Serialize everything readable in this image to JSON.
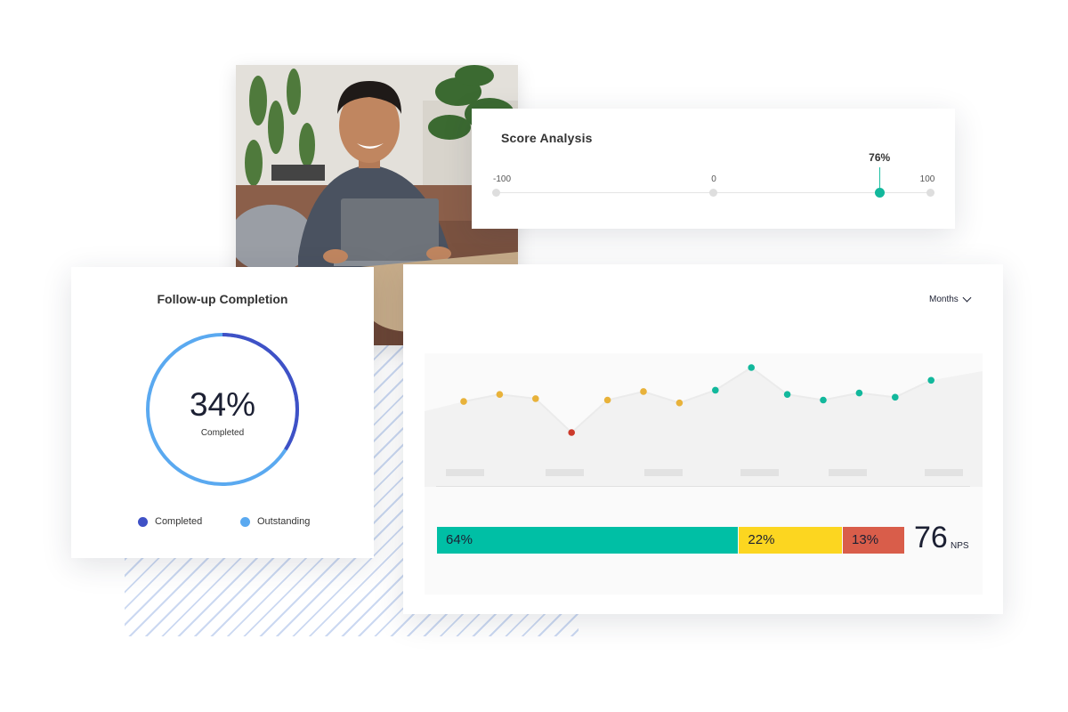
{
  "score_analysis": {
    "title": "Score Analysis",
    "scale": [
      "-100",
      "0",
      "100"
    ],
    "marker_label": "76%",
    "marker_value": 76,
    "colors": {
      "marker": "#12b89c",
      "track": "#e4e4e4"
    }
  },
  "followup": {
    "title": "Follow-up Completion",
    "value_label": "34%",
    "sub_label": "Completed",
    "completed_fraction": 0.34,
    "legend": [
      {
        "label": "Completed",
        "color": "#3f51c6"
      },
      {
        "label": "Outstanding",
        "color": "#5aa9f0"
      }
    ]
  },
  "nps": {
    "period_select": "Months",
    "trend": [
      {
        "value": 52,
        "status": "neutral"
      },
      {
        "value": 57,
        "status": "neutral"
      },
      {
        "value": 54,
        "status": "neutral"
      },
      {
        "value": 30,
        "status": "low"
      },
      {
        "value": 53,
        "status": "neutral"
      },
      {
        "value": 59,
        "status": "neutral"
      },
      {
        "value": 51,
        "status": "neutral"
      },
      {
        "value": 60,
        "status": "good"
      },
      {
        "value": 76,
        "status": "good"
      },
      {
        "value": 57,
        "status": "good"
      },
      {
        "value": 53,
        "status": "good"
      },
      {
        "value": 58,
        "status": "good"
      },
      {
        "value": 55,
        "status": "good"
      },
      {
        "value": 67,
        "status": "good"
      }
    ],
    "status_colors": {
      "neutral": "#e8b23a",
      "low": "#cc3a2b",
      "good": "#12b89c"
    },
    "breakdown": [
      {
        "label": "64%",
        "value": 64,
        "color": "#00bfa5"
      },
      {
        "label": "22%",
        "value": 22,
        "color": "#fcd620"
      },
      {
        "label": "13%",
        "value": 13,
        "color": "#d95d4a"
      }
    ],
    "score": "76",
    "score_unit": "NPS"
  }
}
